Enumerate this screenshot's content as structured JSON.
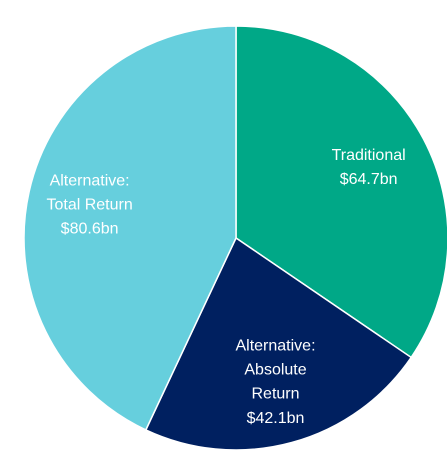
{
  "chart_data": {
    "type": "pie",
    "categories": [
      "Traditional",
      "Alternative:\nAbsolute\nReturn",
      "Alternative:\nTotal Return"
    ],
    "values": [
      64.7,
      42.1,
      80.6
    ],
    "value_labels": [
      "$64.7bn",
      "$42.1bn",
      "$80.6bn"
    ],
    "colors": [
      "#00a887",
      "#002060",
      "#66cfdd"
    ]
  }
}
